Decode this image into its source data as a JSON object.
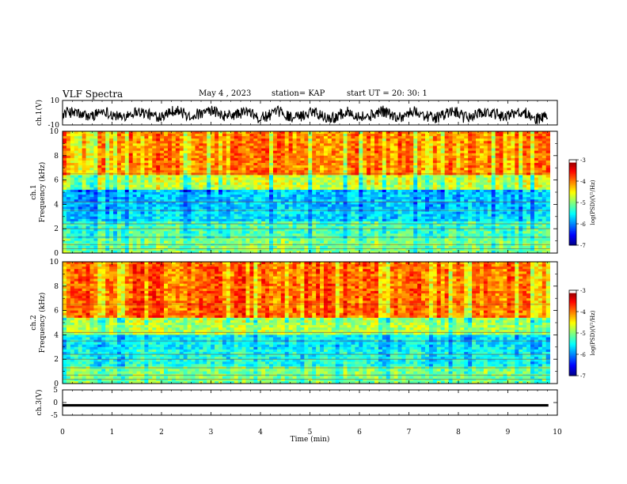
{
  "header": {
    "title": "VLF Spectra",
    "date": "May 4 , 2023",
    "station": "station= KAP",
    "start": "start UT = 20: 30: 1"
  },
  "chart_data": [
    {
      "type": "line",
      "ylabel": "ch.1(V)",
      "ylim": [
        -10,
        10
      ],
      "yticks": [
        "10",
        "-10"
      ],
      "xlim": [
        0,
        10
      ],
      "note": "noisy waveform"
    },
    {
      "type": "heatmap",
      "ylabel": "ch.1\nFrequency (kHz)",
      "ylim": [
        0,
        10
      ],
      "yticks": [
        "0",
        "2",
        "4",
        "6",
        "8",
        "10"
      ],
      "xlim": [
        0,
        10
      ],
      "colorbar": {
        "label": "log(PSD)(V²/Hz)",
        "ticks": [
          "-3",
          "-4",
          "-5",
          "-6",
          "-7"
        ],
        "range": [
          -7,
          -3
        ]
      },
      "bands_kHz_approx": [
        {
          "from": 0,
          "to": 1.2,
          "level": -5.0
        },
        {
          "from": 1.2,
          "to": 2.6,
          "level": -5.2
        },
        {
          "from": 2.6,
          "to": 3.6,
          "level": -5.6
        },
        {
          "from": 3.6,
          "to": 5.2,
          "level": -5.7
        },
        {
          "from": 5.2,
          "to": 6.4,
          "level": -4.7
        },
        {
          "from": 6.4,
          "to": 10,
          "level": -4.0
        }
      ]
    },
    {
      "type": "heatmap",
      "ylabel": "ch.2\nFrequency (kHz)",
      "ylim": [
        0,
        10
      ],
      "yticks": [
        "0",
        "2",
        "4",
        "6",
        "8",
        "10"
      ],
      "xlim": [
        0,
        10
      ],
      "colorbar": {
        "label": "log(PSD)(V²/Hz)",
        "ticks": [
          "-3",
          "-4",
          "-5",
          "-6",
          "-7"
        ],
        "range": [
          -7,
          -3
        ]
      },
      "bands_kHz_approx": [
        {
          "from": 0,
          "to": 1.4,
          "level": -5.0
        },
        {
          "from": 1.4,
          "to": 2.8,
          "level": -5.4
        },
        {
          "from": 2.8,
          "to": 4.0,
          "level": -5.5
        },
        {
          "from": 4.0,
          "to": 5.4,
          "level": -4.8
        },
        {
          "from": 5.4,
          "to": 10,
          "level": -3.9
        }
      ]
    },
    {
      "type": "line",
      "ylabel": "ch.3(V)",
      "ylim": [
        -5,
        5
      ],
      "yticks": [
        "5",
        "0",
        "-5"
      ],
      "xlim": [
        0,
        10
      ],
      "xticks": [
        "0",
        "1",
        "2",
        "3",
        "4",
        "5",
        "6",
        "7",
        "8",
        "9",
        "10"
      ],
      "xlabel": "Time (min)",
      "note": "flat thick trace near -1 V"
    }
  ]
}
